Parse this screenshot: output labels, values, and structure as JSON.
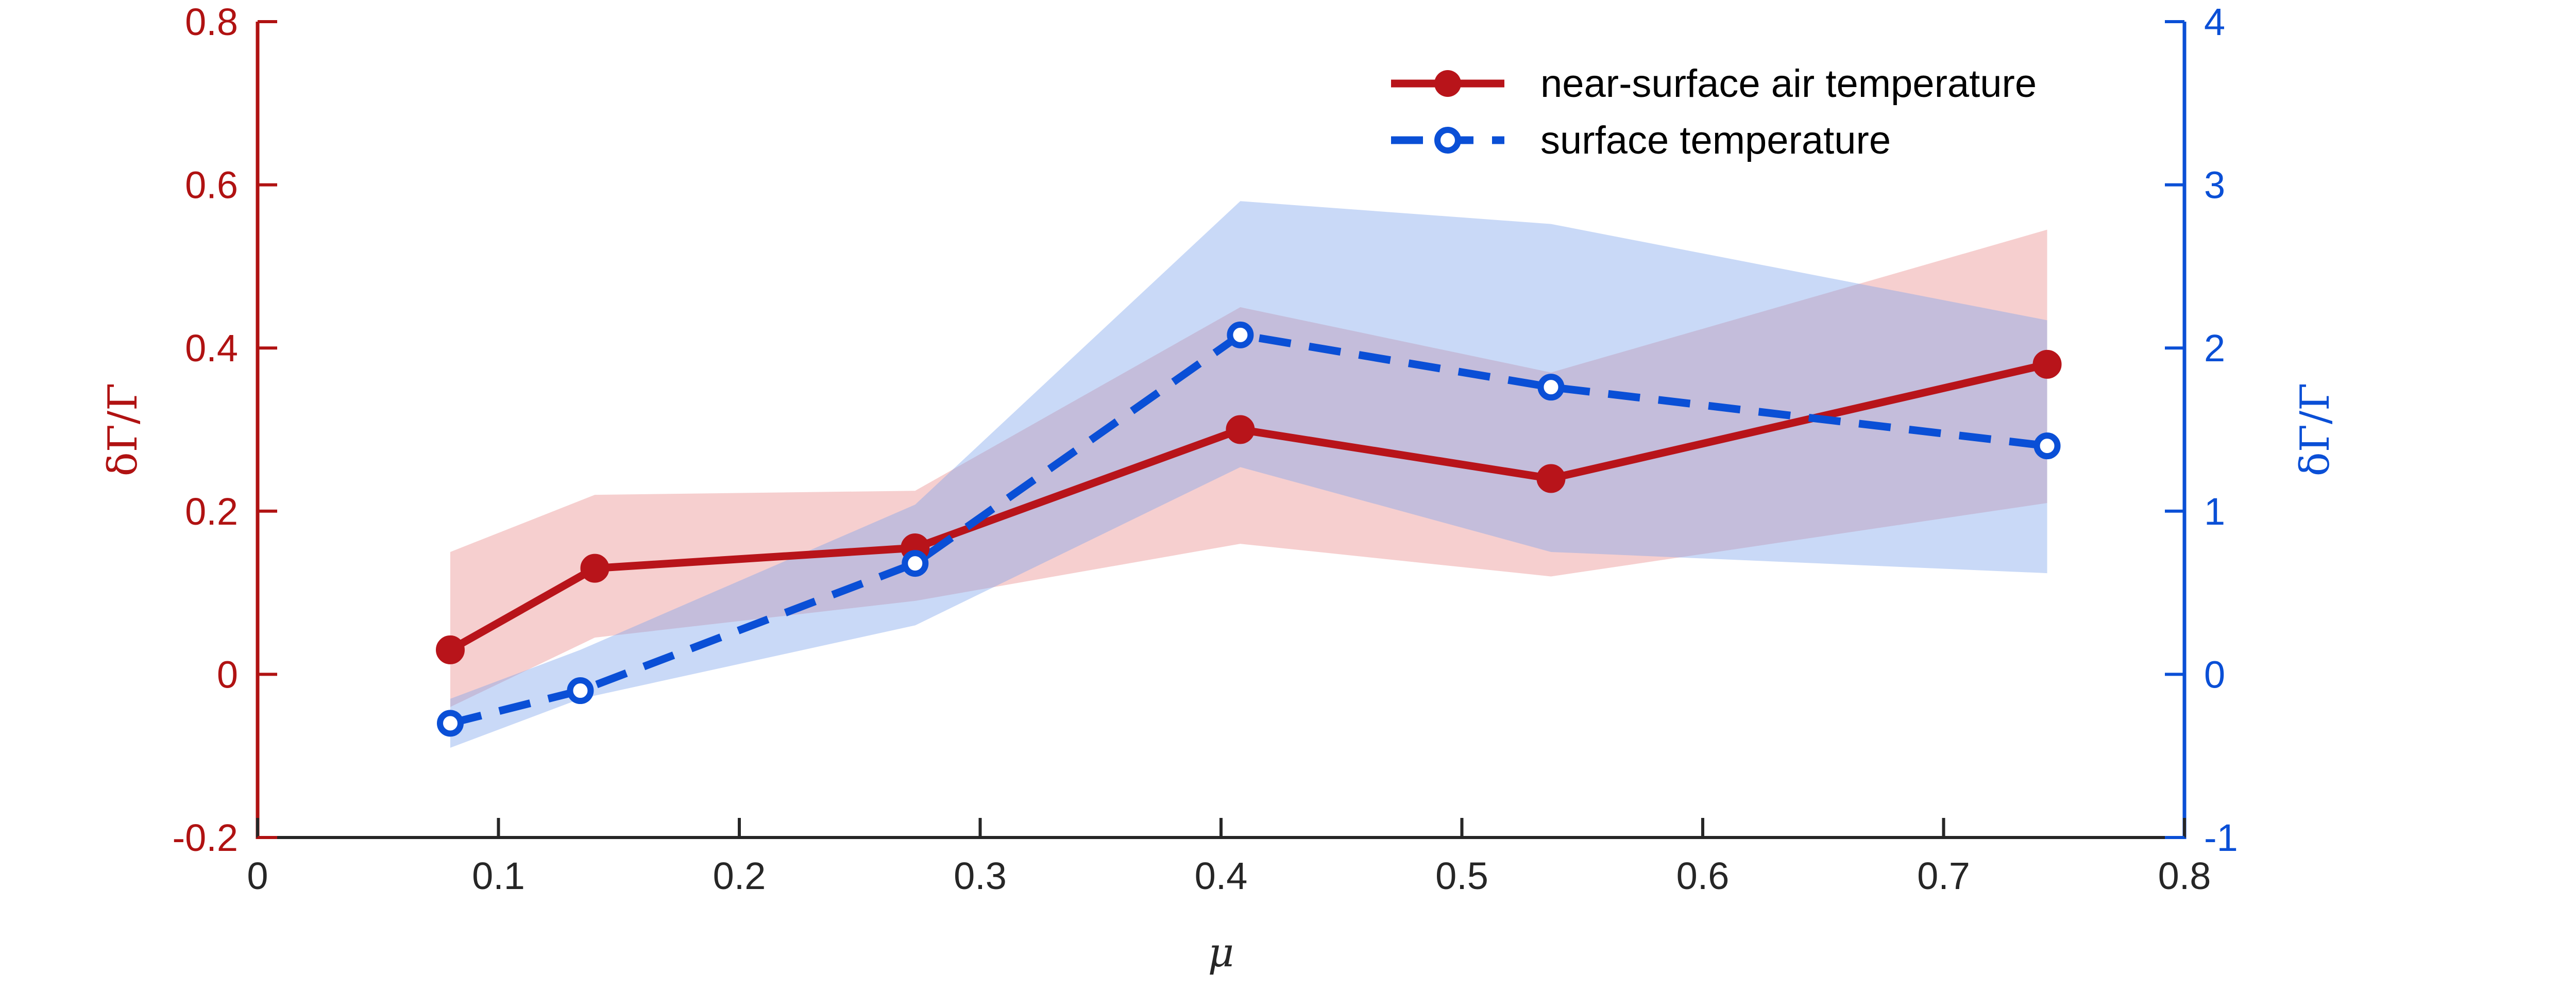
{
  "chart_data": {
    "type": "line",
    "title": "",
    "xlabel": "μ",
    "ylabel_left": "δΓ/Γ",
    "ylabel_right": "δΓ/Γ",
    "xlim": [
      0,
      0.8
    ],
    "ylim_left": [
      -0.2,
      0.8
    ],
    "ylim_right": [
      -1,
      4
    ],
    "xticks": [
      "0",
      "0.1",
      "0.2",
      "0.3",
      "0.4",
      "0.5",
      "0.6",
      "0.7",
      "0.8"
    ],
    "yticks_left": [
      "-0.2",
      "0",
      "0.2",
      "0.4",
      "0.6",
      "0.8"
    ],
    "yticks_right": [
      "-1",
      "0",
      "1",
      "2",
      "3",
      "4"
    ],
    "grid": false,
    "legend_position": "top-right",
    "series": [
      {
        "name": "near-surface air temperature",
        "axis": "left",
        "color": "#b01212",
        "line_style": "solid",
        "marker": "filled-circle",
        "x": [
          0.08,
          0.14,
          0.273,
          0.408,
          0.537,
          0.743
        ],
        "y": [
          0.03,
          0.13,
          0.155,
          0.3,
          0.24,
          0.38
        ],
        "band_lower": [
          -0.04,
          0.045,
          0.09,
          0.16,
          0.12,
          0.21
        ],
        "band_upper": [
          0.15,
          0.22,
          0.225,
          0.45,
          0.37,
          0.545
        ],
        "band_color": "#f2c4c4"
      },
      {
        "name": "surface temperature",
        "axis": "right",
        "color": "#0a4fd6",
        "line_style": "dashed",
        "marker": "open-circle",
        "x": [
          0.08,
          0.134,
          0.273,
          0.408,
          0.537,
          0.743
        ],
        "y": [
          -0.3,
          -0.1,
          0.68,
          2.08,
          1.76,
          1.4
        ],
        "band_lower": [
          -0.45,
          -0.15,
          0.3,
          1.27,
          0.75,
          0.62
        ],
        "band_upper": [
          -0.15,
          0.15,
          1.04,
          2.9,
          2.76,
          2.17
        ],
        "band_color": "#c7d8f6"
      }
    ]
  }
}
